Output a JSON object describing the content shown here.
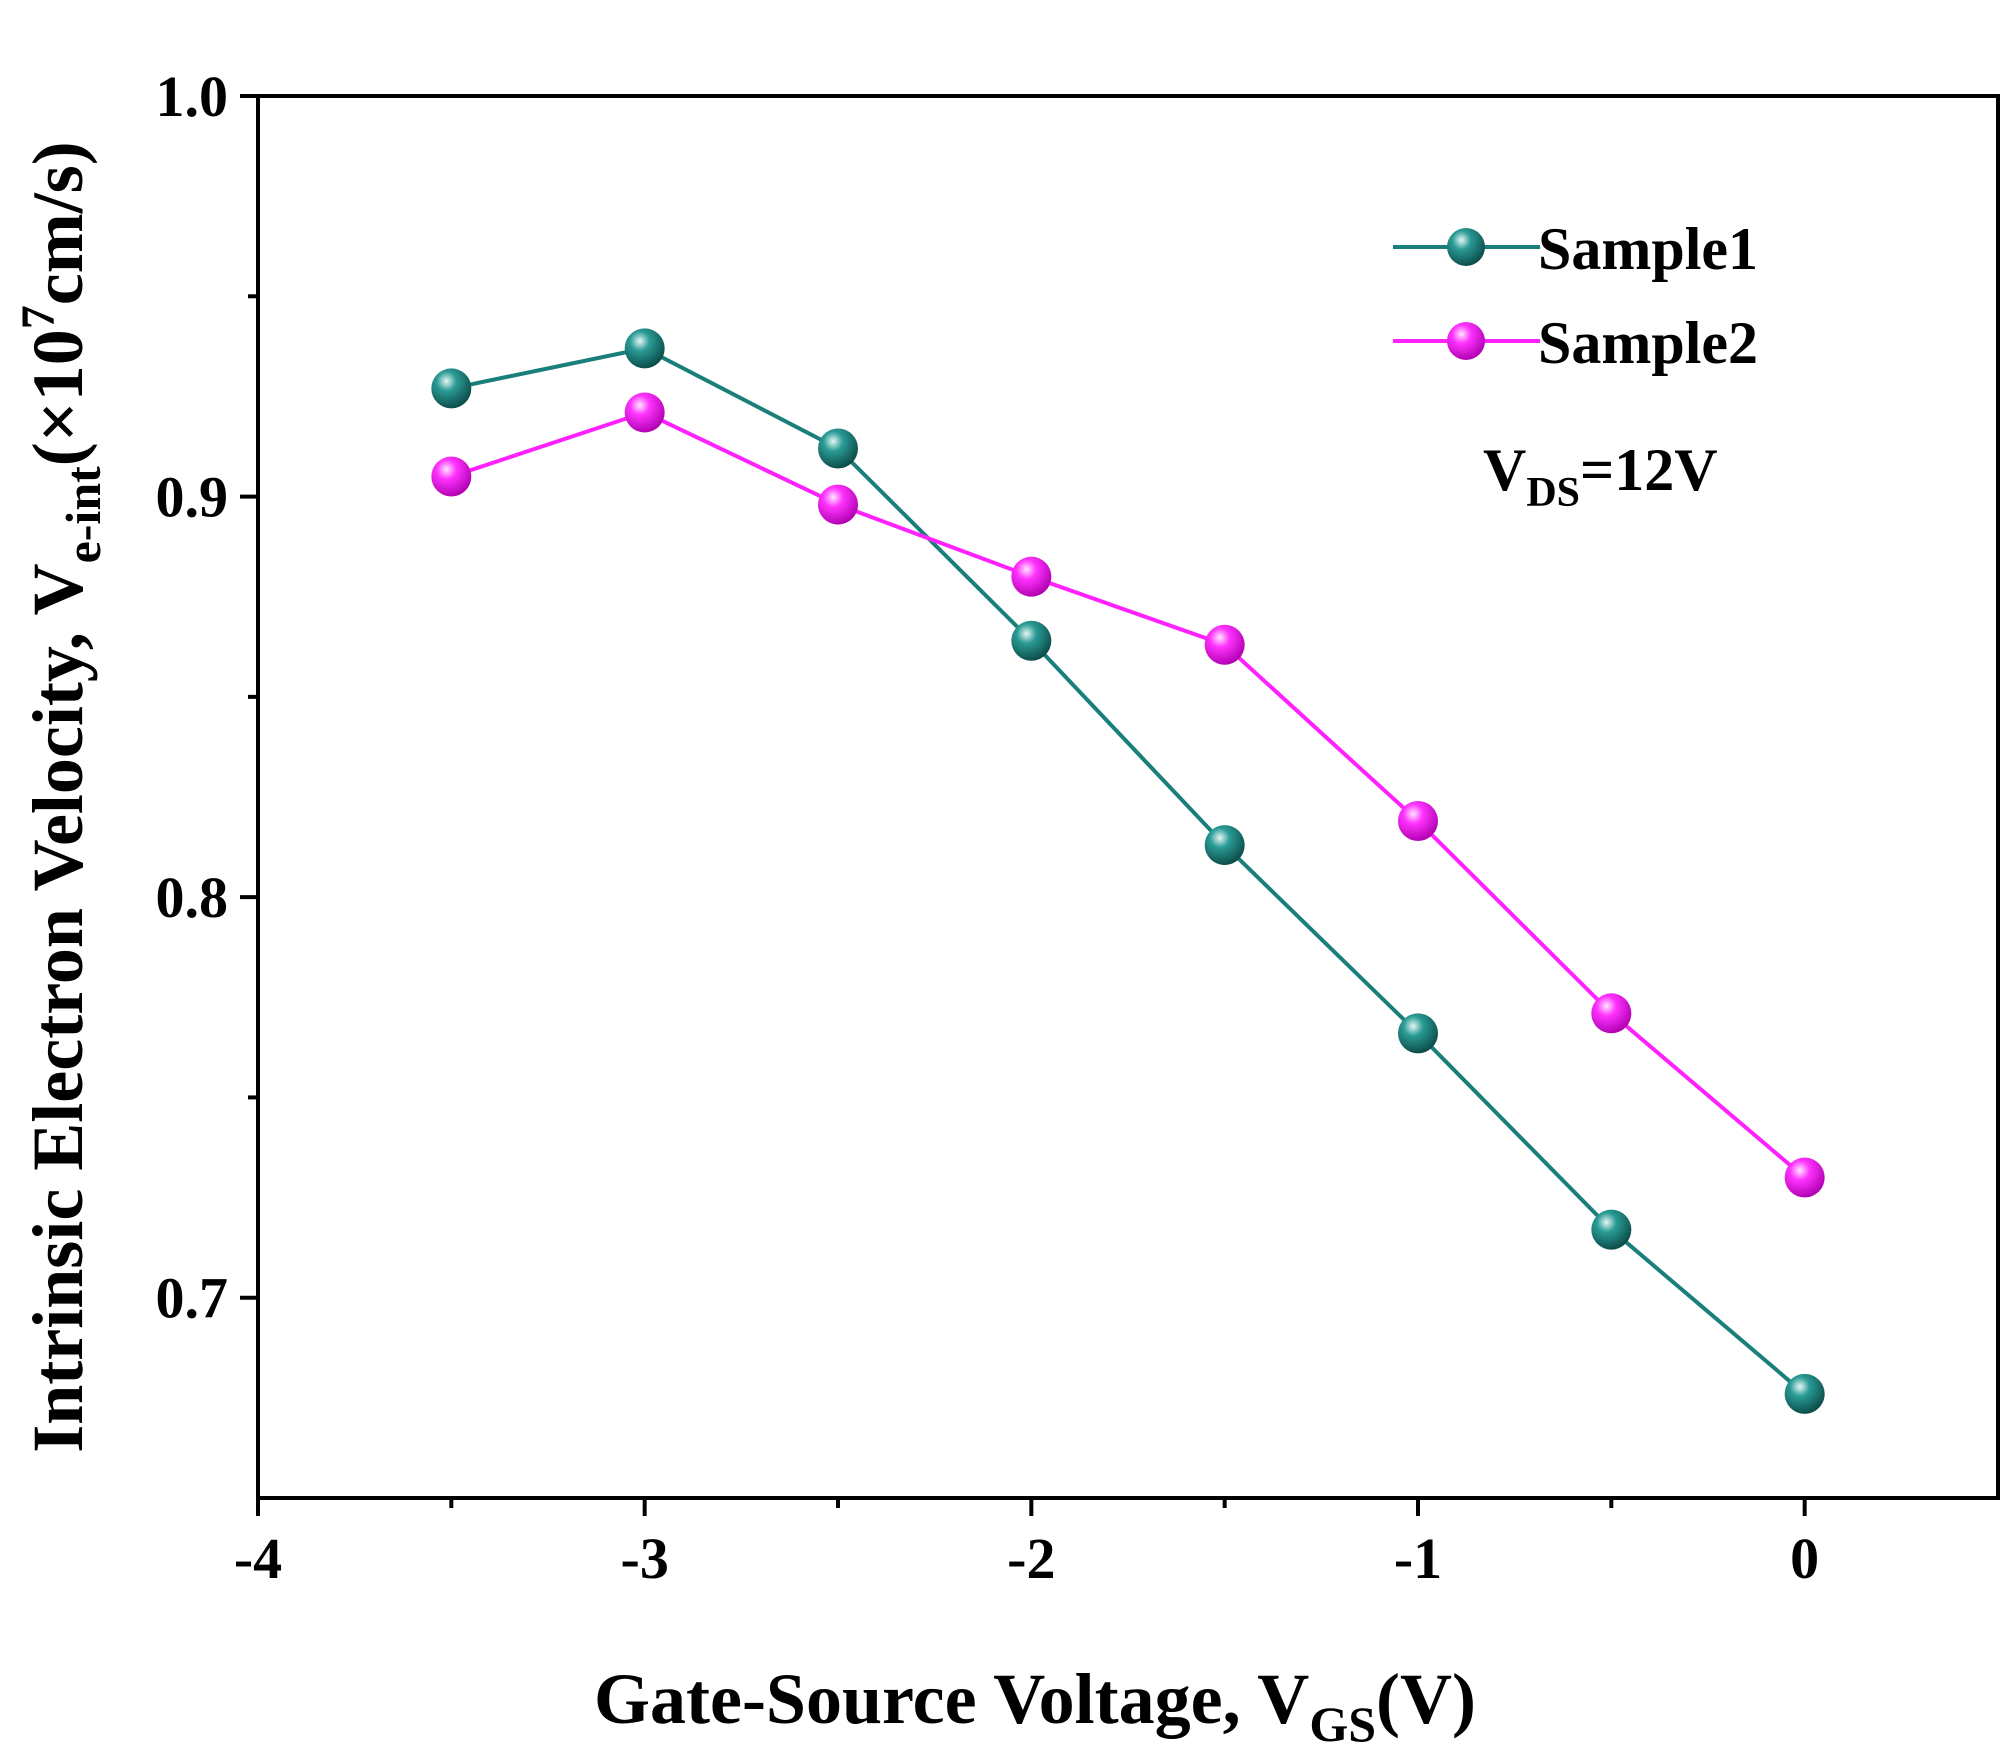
{
  "chart_data": {
    "type": "line",
    "title": "",
    "xlabel": {
      "main": "Gate-Source Voltage, V",
      "sub": "GS",
      "suffix": "(V)"
    },
    "ylabel": {
      "main": "Intrinsic Electron Velocity, V",
      "sub": "e-int",
      "prefix_unit": "(×10",
      "sup": "7",
      "suffix": "cm/s)"
    },
    "xlim": [
      -4,
      0.5
    ],
    "ylim": [
      0.65,
      1.0
    ],
    "xticks": [
      -4,
      -3,
      -2,
      -1,
      0
    ],
    "xtick_labels": [
      "-4",
      "-3",
      "-2",
      "-1",
      "0"
    ],
    "xminor": [
      -3.5,
      -2.5,
      -1.5,
      -0.5
    ],
    "yticks": [
      0.7,
      0.8,
      0.9,
      1.0
    ],
    "ytick_labels": [
      "0.7",
      "0.8",
      "0.9",
      "1.0"
    ],
    "yminor": [
      0.75,
      0.85,
      0.95
    ],
    "x": [
      -3.5,
      -3.0,
      -2.5,
      -2.0,
      -1.5,
      -1.0,
      -0.5,
      0.0
    ],
    "series": [
      {
        "name": "Sample1",
        "color": "#1a7f7a",
        "values": [
          0.927,
          0.937,
          0.912,
          0.864,
          0.813,
          0.766,
          0.717,
          0.676
        ]
      },
      {
        "name": "Sample2",
        "color": "#ff22ff",
        "values": [
          0.905,
          0.921,
          0.898,
          0.88,
          0.863,
          0.819,
          0.771,
          0.73
        ]
      }
    ],
    "legend_position": "top-right",
    "annotation": {
      "main": "V",
      "sub": "DS",
      "suffix": "=12V"
    }
  }
}
